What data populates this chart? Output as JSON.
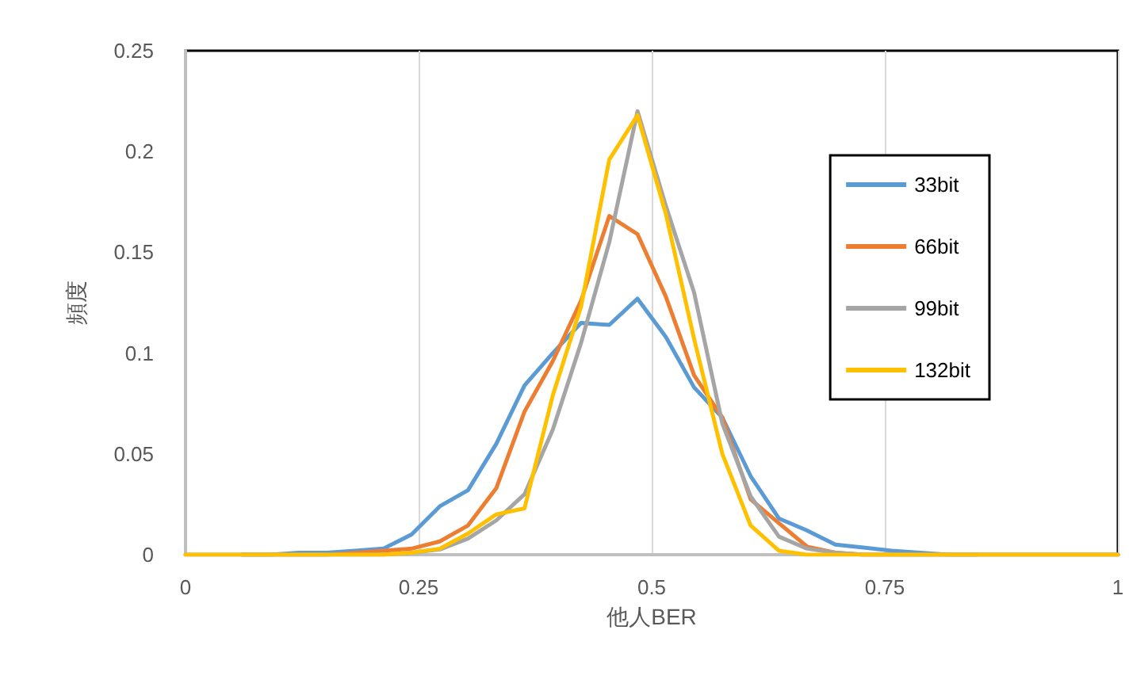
{
  "chart_data": {
    "type": "line",
    "xlabel": "他人BER",
    "ylabel": "頻度",
    "x": [
      0,
      0.0303,
      0.0606,
      0.0909,
      0.1212,
      0.1515,
      0.1818,
      0.2121,
      0.2424,
      0.2727,
      0.303,
      0.3333,
      0.3636,
      0.3939,
      0.4242,
      0.4545,
      0.4848,
      0.5152,
      0.5455,
      0.5758,
      0.6061,
      0.6364,
      0.6667,
      0.697,
      0.7273,
      0.7576,
      0.7879,
      0.8182,
      0.8485,
      0.8788,
      0.9091,
      0.9394,
      0.9697,
      1
    ],
    "series": [
      {
        "name": "33bit",
        "color": "#5b9bd5",
        "values": [
          null,
          null,
          0,
          0,
          0.001,
          0.001,
          0.002,
          0.003,
          0.01,
          0.024,
          0.032,
          0.055,
          0.084,
          0.1,
          0.115,
          0.114,
          0.127,
          0.108,
          0.083,
          0.068,
          0.039,
          0.018,
          0.012,
          0.005,
          0.0035,
          0.002,
          0.001,
          0,
          0,
          null,
          null,
          null,
          null,
          null
        ]
      },
      {
        "name": "66bit",
        "color": "#ed7d31",
        "values": [
          null,
          null,
          0,
          0,
          0,
          0,
          0.001,
          0.002,
          0.003,
          0.0066,
          0.0145,
          0.033,
          0.071,
          0.096,
          0.126,
          0.168,
          0.159,
          0.128,
          0.089,
          0.068,
          0.0275,
          0.0157,
          0.004,
          0.001,
          0,
          0,
          0,
          0,
          0,
          0,
          0,
          0,
          0,
          0
        ]
      },
      {
        "name": "99bit",
        "color": "#a5a5a5",
        "values": [
          0,
          0,
          0,
          0,
          0,
          0,
          0,
          0,
          0.001,
          0.0026,
          0.008,
          0.017,
          0.03,
          0.062,
          0.105,
          0.155,
          0.22,
          0.173,
          0.13,
          0.065,
          0.029,
          0.009,
          0.003,
          0.001,
          0,
          0,
          0,
          0,
          0,
          0,
          0,
          0,
          0,
          0
        ]
      },
      {
        "name": "132bit",
        "color": "#ffc000",
        "values": [
          0,
          0,
          0,
          0,
          0,
          0,
          0,
          0,
          0.001,
          0.003,
          0.0105,
          0.02,
          0.023,
          0.079,
          0.123,
          0.196,
          0.218,
          0.169,
          0.107,
          0.05,
          0.0145,
          0.002,
          0,
          0,
          0,
          0,
          0,
          0,
          0,
          0,
          0,
          0,
          0,
          0
        ]
      }
    ],
    "xlim": [
      0,
      1
    ],
    "xticks": [
      0,
      0.25,
      0.5,
      0.75,
      1
    ],
    "ylim": [
      0,
      0.25
    ],
    "yticks": [
      0,
      0.05,
      0.1,
      0.15,
      0.2,
      0.25
    ],
    "grid": "x",
    "legend": "top right",
    "marker": "none",
    "line_style": "solid"
  }
}
